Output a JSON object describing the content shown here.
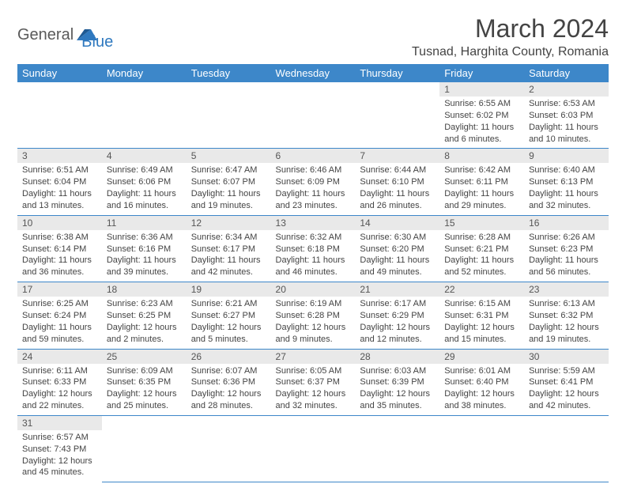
{
  "logo": {
    "general": "General",
    "blue": "Blue"
  },
  "title": "March 2024",
  "location": "Tusnad, Harghita County, Romania",
  "colors": {
    "header_bg": "#3d87c9",
    "header_fg": "#ffffff",
    "daynum_bg": "#e9e9e9",
    "border": "#3d87c9",
    "logo_blue": "#2f79bf",
    "logo_gray": "#5a5a5a"
  },
  "day_headers": [
    "Sunday",
    "Monday",
    "Tuesday",
    "Wednesday",
    "Thursday",
    "Friday",
    "Saturday"
  ],
  "weeks": [
    [
      null,
      null,
      null,
      null,
      null,
      {
        "n": "1",
        "sunrise": "6:55 AM",
        "sunset": "6:02 PM",
        "dl": "11 hours and 6 minutes."
      },
      {
        "n": "2",
        "sunrise": "6:53 AM",
        "sunset": "6:03 PM",
        "dl": "11 hours and 10 minutes."
      }
    ],
    [
      {
        "n": "3",
        "sunrise": "6:51 AM",
        "sunset": "6:04 PM",
        "dl": "11 hours and 13 minutes."
      },
      {
        "n": "4",
        "sunrise": "6:49 AM",
        "sunset": "6:06 PM",
        "dl": "11 hours and 16 minutes."
      },
      {
        "n": "5",
        "sunrise": "6:47 AM",
        "sunset": "6:07 PM",
        "dl": "11 hours and 19 minutes."
      },
      {
        "n": "6",
        "sunrise": "6:46 AM",
        "sunset": "6:09 PM",
        "dl": "11 hours and 23 minutes."
      },
      {
        "n": "7",
        "sunrise": "6:44 AM",
        "sunset": "6:10 PM",
        "dl": "11 hours and 26 minutes."
      },
      {
        "n": "8",
        "sunrise": "6:42 AM",
        "sunset": "6:11 PM",
        "dl": "11 hours and 29 minutes."
      },
      {
        "n": "9",
        "sunrise": "6:40 AM",
        "sunset": "6:13 PM",
        "dl": "11 hours and 32 minutes."
      }
    ],
    [
      {
        "n": "10",
        "sunrise": "6:38 AM",
        "sunset": "6:14 PM",
        "dl": "11 hours and 36 minutes."
      },
      {
        "n": "11",
        "sunrise": "6:36 AM",
        "sunset": "6:16 PM",
        "dl": "11 hours and 39 minutes."
      },
      {
        "n": "12",
        "sunrise": "6:34 AM",
        "sunset": "6:17 PM",
        "dl": "11 hours and 42 minutes."
      },
      {
        "n": "13",
        "sunrise": "6:32 AM",
        "sunset": "6:18 PM",
        "dl": "11 hours and 46 minutes."
      },
      {
        "n": "14",
        "sunrise": "6:30 AM",
        "sunset": "6:20 PM",
        "dl": "11 hours and 49 minutes."
      },
      {
        "n": "15",
        "sunrise": "6:28 AM",
        "sunset": "6:21 PM",
        "dl": "11 hours and 52 minutes."
      },
      {
        "n": "16",
        "sunrise": "6:26 AM",
        "sunset": "6:23 PM",
        "dl": "11 hours and 56 minutes."
      }
    ],
    [
      {
        "n": "17",
        "sunrise": "6:25 AM",
        "sunset": "6:24 PM",
        "dl": "11 hours and 59 minutes."
      },
      {
        "n": "18",
        "sunrise": "6:23 AM",
        "sunset": "6:25 PM",
        "dl": "12 hours and 2 minutes."
      },
      {
        "n": "19",
        "sunrise": "6:21 AM",
        "sunset": "6:27 PM",
        "dl": "12 hours and 5 minutes."
      },
      {
        "n": "20",
        "sunrise": "6:19 AM",
        "sunset": "6:28 PM",
        "dl": "12 hours and 9 minutes."
      },
      {
        "n": "21",
        "sunrise": "6:17 AM",
        "sunset": "6:29 PM",
        "dl": "12 hours and 12 minutes."
      },
      {
        "n": "22",
        "sunrise": "6:15 AM",
        "sunset": "6:31 PM",
        "dl": "12 hours and 15 minutes."
      },
      {
        "n": "23",
        "sunrise": "6:13 AM",
        "sunset": "6:32 PM",
        "dl": "12 hours and 19 minutes."
      }
    ],
    [
      {
        "n": "24",
        "sunrise": "6:11 AM",
        "sunset": "6:33 PM",
        "dl": "12 hours and 22 minutes."
      },
      {
        "n": "25",
        "sunrise": "6:09 AM",
        "sunset": "6:35 PM",
        "dl": "12 hours and 25 minutes."
      },
      {
        "n": "26",
        "sunrise": "6:07 AM",
        "sunset": "6:36 PM",
        "dl": "12 hours and 28 minutes."
      },
      {
        "n": "27",
        "sunrise": "6:05 AM",
        "sunset": "6:37 PM",
        "dl": "12 hours and 32 minutes."
      },
      {
        "n": "28",
        "sunrise": "6:03 AM",
        "sunset": "6:39 PM",
        "dl": "12 hours and 35 minutes."
      },
      {
        "n": "29",
        "sunrise": "6:01 AM",
        "sunset": "6:40 PM",
        "dl": "12 hours and 38 minutes."
      },
      {
        "n": "30",
        "sunrise": "5:59 AM",
        "sunset": "6:41 PM",
        "dl": "12 hours and 42 minutes."
      }
    ],
    [
      {
        "n": "31",
        "sunrise": "6:57 AM",
        "sunset": "7:43 PM",
        "dl": "12 hours and 45 minutes."
      },
      null,
      null,
      null,
      null,
      null,
      null
    ]
  ],
  "labels": {
    "sunrise": "Sunrise:",
    "sunset": "Sunset:",
    "daylight": "Daylight:"
  }
}
